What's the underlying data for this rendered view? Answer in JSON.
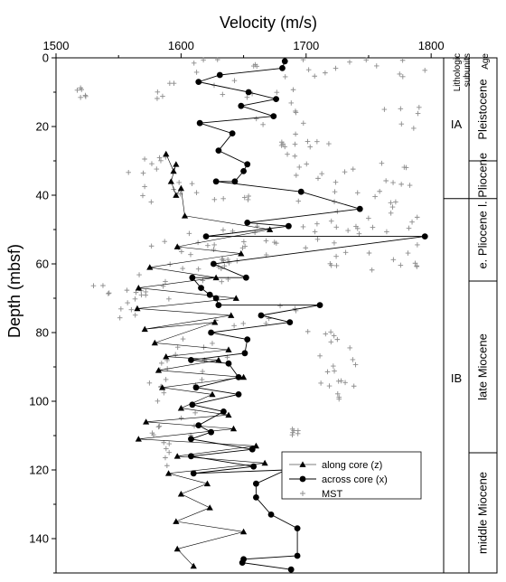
{
  "chart_data": {
    "type": "scatter",
    "title": "",
    "xlabel": "Velocity (m/s)",
    "ylabel": "Depth (mbsf)",
    "xlim": [
      1500,
      1810
    ],
    "ylim": [
      0,
      150
    ],
    "y_inverted": true,
    "x_axis_position": "top",
    "x_ticks": [
      1500,
      1600,
      1700,
      1800
    ],
    "y_ticks": [
      0,
      20,
      40,
      60,
      80,
      100,
      120,
      140
    ],
    "grid": false,
    "legend_position": "bottom-right",
    "colors": {
      "along": "#000000",
      "across": "#000000",
      "mst": "#8c8c8c"
    },
    "series": [
      {
        "name": "along core (z)",
        "marker": "triangle",
        "line": "thin-solid",
        "points": [
          [
            1588,
            28
          ],
          [
            1594,
            33
          ],
          [
            1596,
            31
          ],
          [
            1592,
            36
          ],
          [
            1596,
            40
          ],
          [
            1600,
            38
          ],
          [
            1603,
            46
          ],
          [
            1671,
            50
          ],
          [
            1597,
            55
          ],
          [
            1648,
            57
          ],
          [
            1575,
            61
          ],
          [
            1628,
            64
          ],
          [
            1566,
            67
          ],
          [
            1644,
            70
          ],
          [
            1565,
            73
          ],
          [
            1640,
            75
          ],
          [
            1571,
            79
          ],
          [
            1627,
            77
          ],
          [
            1579,
            83
          ],
          [
            1638,
            85
          ],
          [
            1588,
            87
          ],
          [
            1630,
            88
          ],
          [
            1582,
            91
          ],
          [
            1650,
            93
          ],
          [
            1585,
            96
          ],
          [
            1625,
            98
          ],
          [
            1600,
            102
          ],
          [
            1638,
            104
          ],
          [
            1572,
            106
          ],
          [
            1642,
            108
          ],
          [
            1566,
            111
          ],
          [
            1660,
            113
          ],
          [
            1597,
            116
          ],
          [
            1667,
            118
          ],
          [
            1590,
            121
          ],
          [
            1621,
            124
          ],
          [
            1600,
            127
          ],
          [
            1623,
            131
          ],
          [
            1596,
            135
          ],
          [
            1650,
            138
          ],
          [
            1597,
            143
          ],
          [
            1610,
            148
          ]
        ]
      },
      {
        "name": "across core (x)",
        "marker": "circle",
        "line": "solid",
        "points": [
          [
            1683,
            1
          ],
          [
            1681,
            3
          ],
          [
            1631,
            5
          ],
          [
            1614,
            7
          ],
          [
            1654,
            10
          ],
          [
            1676,
            12
          ],
          [
            1648,
            14
          ],
          [
            1674,
            17
          ],
          [
            1615,
            19
          ],
          [
            1641,
            22
          ],
          [
            1630,
            27
          ],
          [
            1653,
            31
          ],
          [
            1650,
            33
          ],
          [
            1643,
            36
          ],
          [
            1628,
            36
          ],
          [
            1696,
            39
          ],
          [
            1743,
            44
          ],
          [
            1653,
            48
          ],
          [
            1686,
            49
          ],
          [
            1620,
            52
          ],
          [
            1795,
            52
          ],
          [
            1626,
            60
          ],
          [
            1652,
            64
          ],
          [
            1609,
            64
          ],
          [
            1616,
            67
          ],
          [
            1623,
            69
          ],
          [
            1628,
            70
          ],
          [
            1630,
            72
          ],
          [
            1711,
            72
          ],
          [
            1664,
            75
          ],
          [
            1687,
            77
          ],
          [
            1624,
            80
          ],
          [
            1653,
            82
          ],
          [
            1651,
            86
          ],
          [
            1608,
            88
          ],
          [
            1638,
            89
          ],
          [
            1646,
            93
          ],
          [
            1612,
            96
          ],
          [
            1646,
            98
          ],
          [
            1609,
            101
          ],
          [
            1634,
            103
          ],
          [
            1614,
            107
          ],
          [
            1624,
            109
          ],
          [
            1608,
            111
          ],
          [
            1657,
            114
          ],
          [
            1608,
            116
          ],
          [
            1658,
            119
          ],
          [
            1610,
            121
          ],
          [
            1684,
            120
          ],
          [
            1660,
            124
          ],
          [
            1660,
            128
          ],
          [
            1672,
            133
          ],
          [
            1693,
            137
          ],
          [
            1693,
            145
          ],
          [
            1650,
            146
          ],
          [
            1649,
            147
          ],
          [
            1688,
            149
          ]
        ]
      },
      {
        "name": "MST",
        "marker": "plus",
        "line": "none",
        "density_note": "dense scatter; estimated clusters",
        "clusters": [
          [
            0,
            6,
            1600,
            1800
          ],
          [
            6,
            12,
            1580,
            1700
          ],
          [
            8,
            12,
            1510,
            1530
          ],
          [
            12,
            20,
            1660,
            1700
          ],
          [
            14,
            22,
            1760,
            1800
          ],
          [
            20,
            26,
            1680,
            1720
          ],
          [
            24,
            30,
            1680,
            1700
          ],
          [
            28,
            38,
            1555,
            1600
          ],
          [
            30,
            36,
            1690,
            1800
          ],
          [
            36,
            42,
            1560,
            1800
          ],
          [
            42,
            48,
            1720,
            1800
          ],
          [
            48,
            60,
            1600,
            1790
          ],
          [
            52,
            62,
            1575,
            1640
          ],
          [
            56,
            62,
            1720,
            1790
          ],
          [
            60,
            72,
            1560,
            1640
          ],
          [
            66,
            70,
            1520,
            1570
          ],
          [
            70,
            76,
            1550,
            1580
          ],
          [
            72,
            78,
            1620,
            1700
          ],
          [
            78,
            84,
            1700,
            1730
          ],
          [
            80,
            92,
            1575,
            1640
          ],
          [
            84,
            96,
            1690,
            1740
          ],
          [
            92,
            100,
            1560,
            1620
          ],
          [
            94,
            100,
            1710,
            1730
          ],
          [
            100,
            110,
            1570,
            1620
          ],
          [
            108,
            110,
            1688,
            1695
          ],
          [
            112,
            120,
            1580,
            1600
          ]
        ]
      }
    ],
    "legend": [
      "along core (z)",
      "across core (x)",
      "MST"
    ],
    "panel": {
      "headers": [
        "Lithologic",
        "subunits",
        "Age"
      ],
      "units": [
        {
          "label": "IA",
          "from": 0,
          "to": 41
        },
        {
          "label": "IB",
          "from": 41,
          "to": 150
        }
      ],
      "ages": [
        {
          "label": "Pleistocene",
          "from": 0,
          "to": 30
        },
        {
          "label": "l. Pliocene",
          "from": 30,
          "to": 41
        },
        {
          "label": "e. Pliocene",
          "from": 41,
          "to": 65
        },
        {
          "label": "late Miocene",
          "from": 65,
          "to": 115
        },
        {
          "label": "middle Miocene",
          "from": 115,
          "to": 150
        }
      ]
    }
  }
}
